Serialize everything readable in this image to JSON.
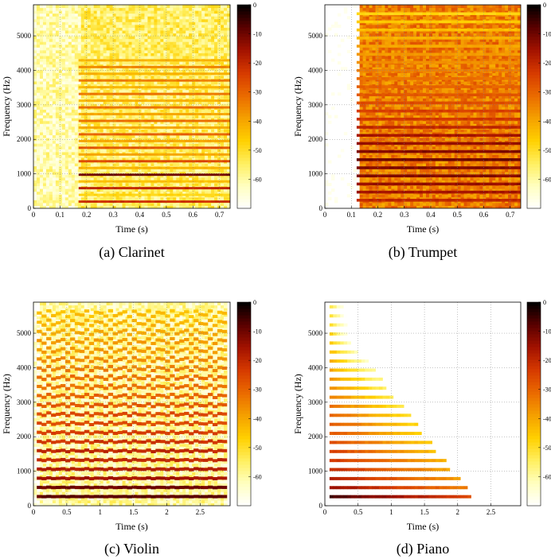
{
  "chart_data": [
    {
      "type": "heatmap",
      "caption": "(a) Clarinet",
      "xlabel": "Time (s)",
      "ylabel": "Frequency (Hz)",
      "xlim": [
        0,
        0.74
      ],
      "ylim": [
        0,
        5900
      ],
      "xticks": [
        "0",
        "0.1",
        "0.2",
        "0.3",
        "0.4",
        "0.5",
        "0.6",
        "0.7"
      ],
      "yticks": [
        "0",
        "1000",
        "2000",
        "3000",
        "4000",
        "5000"
      ],
      "colorbar_ticks": [
        "0",
        "-10",
        "-20",
        "-30",
        "-40",
        "-50",
        "-60"
      ],
      "colorbar_range": [
        -70,
        0
      ],
      "grid": true,
      "onset": 0.17,
      "end": 0.74,
      "f0": 195,
      "noise_floor_db": -55,
      "harmonics_db": [
        -22,
        -48,
        -20,
        -44,
        -10,
        -42,
        -26,
        -40,
        -28,
        -40,
        -30,
        -40,
        -32,
        -40,
        -32,
        -42,
        -33,
        -42,
        -34,
        -42,
        -35,
        -42
      ]
    },
    {
      "type": "heatmap",
      "caption": "(b) Trumpet",
      "xlabel": "Time (s)",
      "ylabel": "Frequency (Hz)",
      "xlim": [
        0,
        0.74
      ],
      "ylim": [
        0,
        5900
      ],
      "xticks": [
        "0",
        "0.1",
        "0.2",
        "0.3",
        "0.4",
        "0.5",
        "0.6",
        "0.7"
      ],
      "yticks": [
        "0",
        "1000",
        "2000",
        "3000",
        "4000",
        "5000"
      ],
      "colorbar_ticks": [
        "0",
        "-10",
        "-20",
        "-30",
        "-40",
        "-50",
        "-60"
      ],
      "colorbar_range": [
        -70,
        0
      ],
      "grid": true,
      "onset": 0.12,
      "end": 0.74,
      "f0": 235,
      "noise_floor_db": -34,
      "harmonics_db": [
        -20,
        -16,
        -14,
        -12,
        -12,
        -10,
        -12,
        -14,
        -16,
        -20,
        -22,
        -24,
        -26,
        -28,
        -30,
        -32,
        -34,
        -36,
        -38,
        -40,
        -42,
        -44,
        -46,
        -48
      ]
    },
    {
      "type": "heatmap",
      "caption": "(c) Violin",
      "xlabel": "Time (s)",
      "ylabel": "Frequency (Hz)",
      "xlim": [
        0,
        2.95
      ],
      "ylim": [
        0,
        5900
      ],
      "xticks": [
        "0",
        "0.5",
        "1",
        "1.5",
        "2",
        "2.5"
      ],
      "yticks": [
        "0",
        "1000",
        "2000",
        "3000",
        "4000",
        "5000"
      ],
      "colorbar_ticks": [
        "0",
        "-10",
        "-20",
        "-30",
        "-40",
        "-50",
        "-60"
      ],
      "colorbar_range": [
        -70,
        0
      ],
      "grid": true,
      "onset": 0.05,
      "end": 2.9,
      "f0": 265,
      "vibrato": true,
      "noise_floor_db": -60,
      "harmonics_db": [
        -8,
        -10,
        -16,
        -18,
        -20,
        -20,
        -22,
        -24,
        -26,
        -26,
        -28,
        -30,
        -32,
        -32,
        -34,
        -36,
        -38,
        -38,
        -40,
        -42,
        -44
      ]
    },
    {
      "type": "heatmap",
      "caption": "(d) Piano",
      "xlabel": "Time (s)",
      "ylabel": "Frequency (Hz)",
      "xlim": [
        0,
        2.95
      ],
      "ylim": [
        0,
        5900
      ],
      "xticks": [
        "0",
        "0.5",
        "1",
        "1.5",
        "2",
        "2.5"
      ],
      "yticks": [
        "0",
        "1000",
        "2000",
        "3000",
        "4000",
        "5000"
      ],
      "colorbar_ticks": [
        "0",
        "-10",
        "-20",
        "-30",
        "-40",
        "-50",
        "-60"
      ],
      "colorbar_range": [
        -70,
        0
      ],
      "grid": true,
      "onset": 0.07,
      "end": 2.2,
      "f0": 262,
      "decay": true,
      "noise_floor_db": -75,
      "harmonics_db": [
        -6,
        -14,
        -18,
        -20,
        -22,
        -24,
        -26,
        -28,
        -28,
        -30,
        -32,
        -34,
        -36,
        -38,
        -40,
        -42,
        -44,
        -46,
        -48,
        -50,
        -52,
        -54
      ]
    }
  ],
  "colormap": [
    "#ffffff",
    "#ffffc0",
    "#ffef60",
    "#ffd000",
    "#f5a000",
    "#ea6a00",
    "#d63a00",
    "#a31200",
    "#5a0000",
    "#000000"
  ]
}
